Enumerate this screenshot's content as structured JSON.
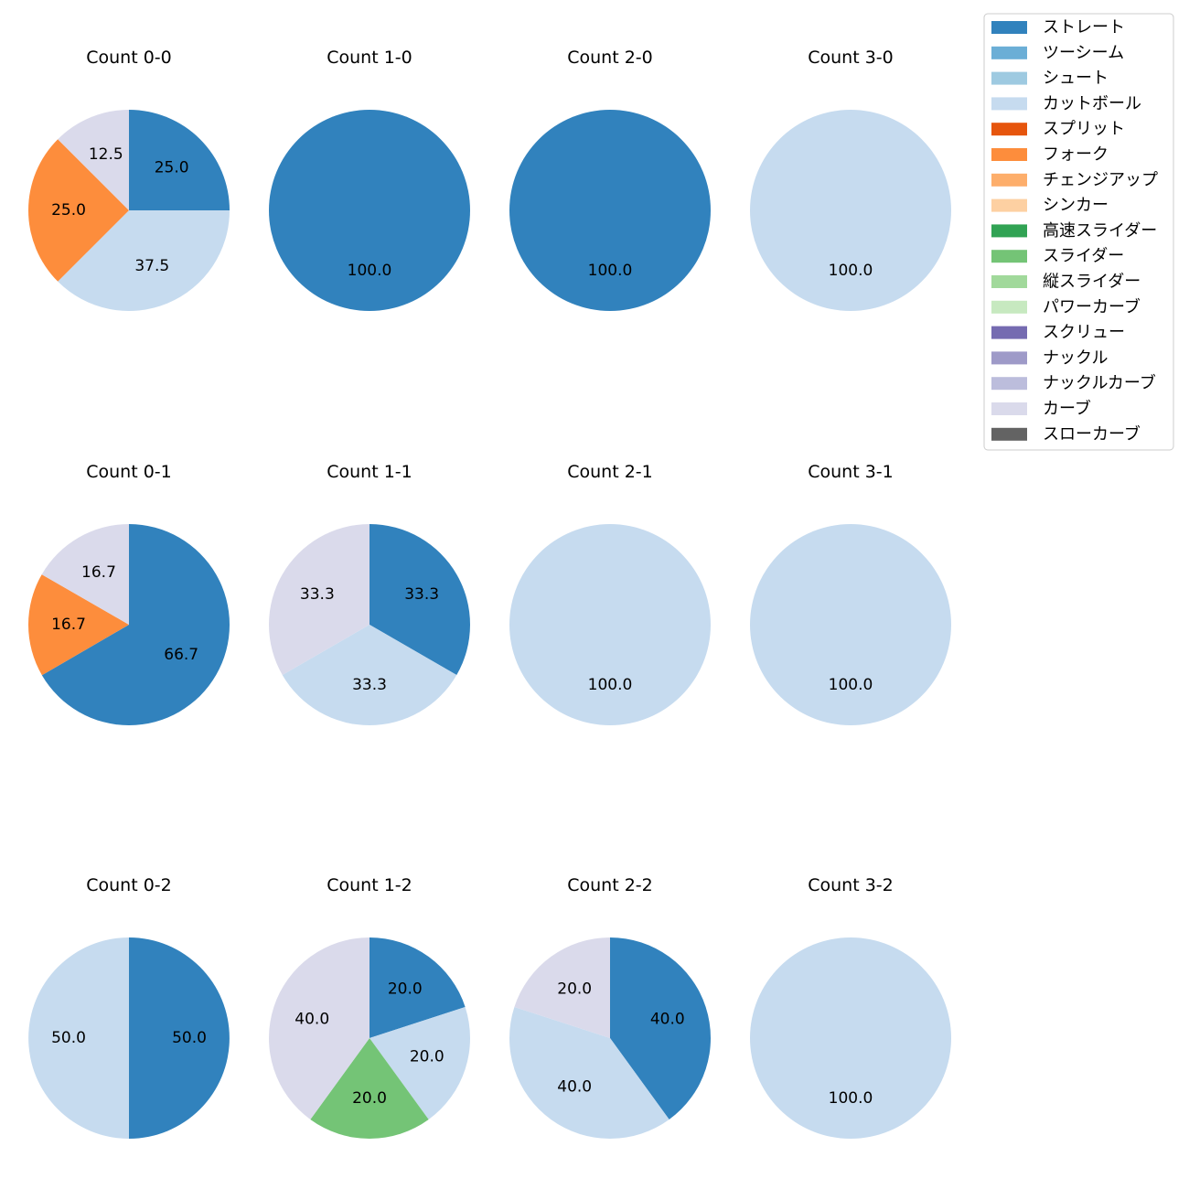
{
  "chart_data": [
    {
      "type": "pie",
      "title": "Count 0-0",
      "slices": [
        {
          "label": "ストレート",
          "value": 25.0
        },
        {
          "label": "カットボール",
          "value": 37.5
        },
        {
          "label": "フォーク",
          "value": 25.0
        },
        {
          "label": "カーブ",
          "value": 12.5
        }
      ]
    },
    {
      "type": "pie",
      "title": "Count 1-0",
      "slices": [
        {
          "label": "ストレート",
          "value": 100.0
        }
      ]
    },
    {
      "type": "pie",
      "title": "Count 2-0",
      "slices": [
        {
          "label": "ストレート",
          "value": 100.0
        }
      ]
    },
    {
      "type": "pie",
      "title": "Count 3-0",
      "slices": [
        {
          "label": "カットボール",
          "value": 100.0
        }
      ]
    },
    {
      "type": "pie",
      "title": "Count 0-1",
      "slices": [
        {
          "label": "ストレート",
          "value": 66.7
        },
        {
          "label": "フォーク",
          "value": 16.7
        },
        {
          "label": "カーブ",
          "value": 16.7
        }
      ]
    },
    {
      "type": "pie",
      "title": "Count 1-1",
      "slices": [
        {
          "label": "ストレート",
          "value": 33.3
        },
        {
          "label": "カットボール",
          "value": 33.3
        },
        {
          "label": "カーブ",
          "value": 33.3
        }
      ]
    },
    {
      "type": "pie",
      "title": "Count 2-1",
      "slices": [
        {
          "label": "カットボール",
          "value": 100.0
        }
      ]
    },
    {
      "type": "pie",
      "title": "Count 3-1",
      "slices": [
        {
          "label": "カットボール",
          "value": 100.0
        }
      ]
    },
    {
      "type": "pie",
      "title": "Count 0-2",
      "slices": [
        {
          "label": "ストレート",
          "value": 50.0
        },
        {
          "label": "カットボール",
          "value": 50.0
        }
      ]
    },
    {
      "type": "pie",
      "title": "Count 1-2",
      "slices": [
        {
          "label": "ストレート",
          "value": 20.0
        },
        {
          "label": "カットボール",
          "value": 20.0
        },
        {
          "label": "スライダー",
          "value": 20.0
        },
        {
          "label": "カーブ",
          "value": 40.0
        }
      ]
    },
    {
      "type": "pie",
      "title": "Count 2-2",
      "slices": [
        {
          "label": "ストレート",
          "value": 40.0
        },
        {
          "label": "カットボール",
          "value": 40.0
        },
        {
          "label": "カーブ",
          "value": 20.0
        }
      ]
    },
    {
      "type": "pie",
      "title": "Count 3-2",
      "slices": [
        {
          "label": "カットボール",
          "value": 100.0
        }
      ]
    }
  ],
  "legend": {
    "placement": "top-right",
    "items": [
      {
        "label": "ストレート",
        "color": "#3182bd"
      },
      {
        "label": "ツーシーム",
        "color": "#6baed6"
      },
      {
        "label": "シュート",
        "color": "#9ecae1"
      },
      {
        "label": "カットボール",
        "color": "#c6dbef"
      },
      {
        "label": "スプリット",
        "color": "#e6550d"
      },
      {
        "label": "フォーク",
        "color": "#fd8d3c"
      },
      {
        "label": "チェンジアップ",
        "color": "#fdae6b"
      },
      {
        "label": "シンカー",
        "color": "#fdd0a2"
      },
      {
        "label": "高速スライダー",
        "color": "#31a354"
      },
      {
        "label": "スライダー",
        "color": "#74c476"
      },
      {
        "label": "縦スライダー",
        "color": "#a1d99b"
      },
      {
        "label": "パワーカーブ",
        "color": "#c7e9c0"
      },
      {
        "label": "スクリュー",
        "color": "#756bb1"
      },
      {
        "label": "ナックル",
        "color": "#9e9ac8"
      },
      {
        "label": "ナックルカーブ",
        "color": "#bcbddc"
      },
      {
        "label": "カーブ",
        "color": "#dadaeb"
      },
      {
        "label": "スローカーブ",
        "color": "#636363"
      }
    ]
  }
}
